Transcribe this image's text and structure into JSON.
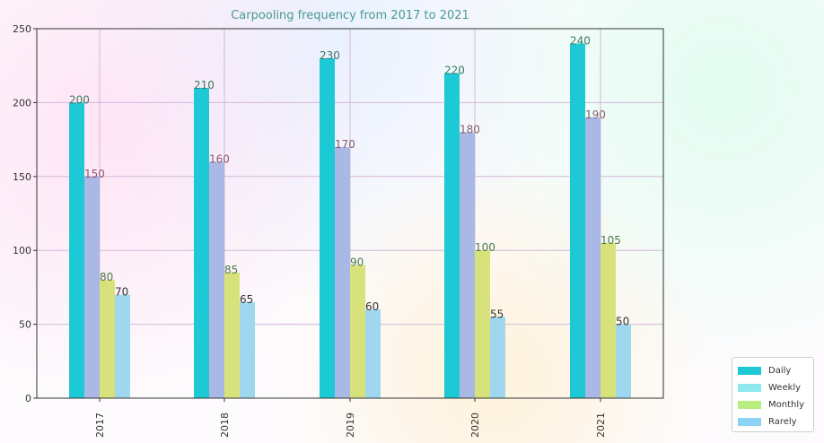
{
  "chart_data": {
    "type": "bar",
    "title": "Carpooling frequency from 2017 to 2021",
    "xlabel": "",
    "ylabel": "",
    "categories": [
      "2017",
      "2018",
      "2019",
      "2020",
      "2021"
    ],
    "ylim": [
      0,
      250
    ],
    "yticks": [
      0,
      50,
      100,
      150,
      200,
      250
    ],
    "grid": true,
    "legend_position": "bottom-right outside",
    "series": [
      {
        "name": "Daily",
        "values": [
          200,
          210,
          230,
          220,
          240
        ],
        "color": "#1ec9d6"
      },
      {
        "name": "Weekly",
        "values": [
          150,
          160,
          170,
          180,
          190
        ],
        "color": "#aab8e6"
      },
      {
        "name": "Monthly",
        "values": [
          80,
          85,
          90,
          100,
          105
        ],
        "color": "#d7e27a"
      },
      {
        "name": "Rarely",
        "values": [
          70,
          65,
          60,
          55,
          50
        ],
        "color": "#9fd8ee"
      }
    ]
  }
}
